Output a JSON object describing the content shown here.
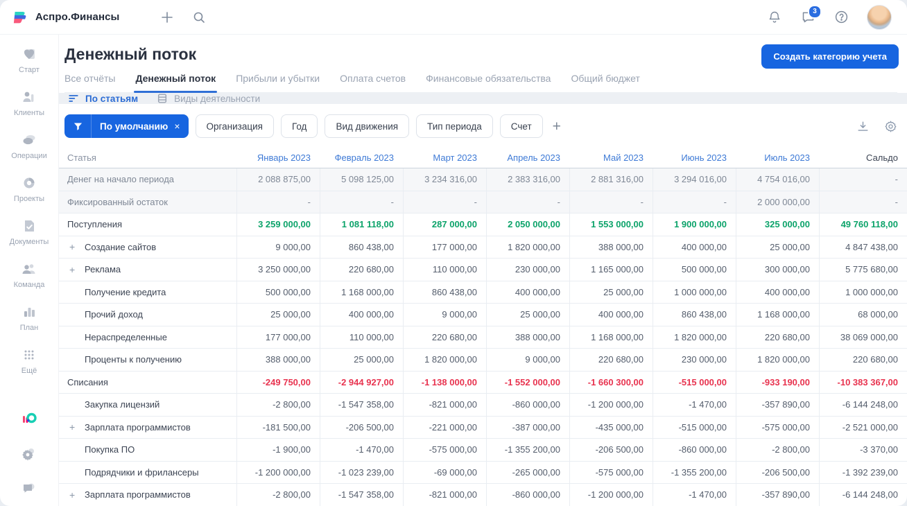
{
  "colors": {
    "accent": "#1765e0",
    "income_green": "#0ca36a",
    "expense_red": "#e8334f",
    "link_blue": "#3e7ad6"
  },
  "topbar": {
    "app_name": "Аспро.Финансы",
    "chat_badge": "3"
  },
  "sidebar": {
    "items": [
      {
        "label": "Старт",
        "icon": "start-icon"
      },
      {
        "label": "Клиенты",
        "icon": "clients-icon"
      },
      {
        "label": "Операции",
        "icon": "operations-icon"
      },
      {
        "label": "Проекты",
        "icon": "projects-icon"
      },
      {
        "label": "Документы",
        "icon": "documents-icon"
      },
      {
        "label": "Команда",
        "icon": "team-icon"
      },
      {
        "label": "План",
        "icon": "plan-icon"
      },
      {
        "label": "Ещё",
        "icon": "more-icon"
      }
    ],
    "footer_icons": [
      "aspro-logo",
      "settings-icon",
      "feedback-icon"
    ]
  },
  "page": {
    "title": "Денежный поток",
    "create_button": "Создать категорию учета"
  },
  "tabs": [
    {
      "label": "Все отчёты",
      "active": false
    },
    {
      "label": "Денежный поток",
      "active": true
    },
    {
      "label": "Прибыли и убытки",
      "active": false
    },
    {
      "label": "Оплата счетов",
      "active": false
    },
    {
      "label": "Финансовые обязательства",
      "active": false
    },
    {
      "label": "Общий бюджет",
      "active": false
    }
  ],
  "subtabs": [
    {
      "label": "По статьям",
      "active": true,
      "icon": "sort-lines-icon"
    },
    {
      "label": "Виды деятельности",
      "active": false,
      "icon": "stack-icon"
    }
  ],
  "filters": {
    "active_chip": {
      "label": "По умолчанию",
      "close": "×"
    },
    "buttons": [
      "Организация",
      "Год",
      "Вид движения",
      "Тип периода",
      "Счет"
    ],
    "add_label": "+"
  },
  "table": {
    "columns": [
      {
        "label": "Статья",
        "type": "label"
      },
      {
        "label": "Январь 2023",
        "type": "month"
      },
      {
        "label": "Февраль 2023",
        "type": "month"
      },
      {
        "label": "Март 2023",
        "type": "month"
      },
      {
        "label": "Апрель 2023",
        "type": "month"
      },
      {
        "label": "Май 2023",
        "type": "month"
      },
      {
        "label": "Июнь 2023",
        "type": "month"
      },
      {
        "label": "Июль 2023",
        "type": "month"
      },
      {
        "label": "Сальдо",
        "type": "saldo"
      }
    ],
    "rows": [
      {
        "label": "Денег на начало периода",
        "style": "muted",
        "values": [
          "2 088 875,00",
          "5 098 125,00",
          "3 234 316,00",
          "2 383 316,00",
          "2 881 316,00",
          "3 294 016,00",
          "4 754 016,00",
          "-"
        ]
      },
      {
        "label": "Фиксированный остаток",
        "style": "muted",
        "values": [
          "-",
          "-",
          "-",
          "-",
          "-",
          "-",
          "2 000 000,00",
          "-"
        ]
      },
      {
        "label": "Поступления",
        "style": "income",
        "values": [
          "3 259 000,00",
          "1 081 118,00",
          "287 000,00",
          "2 050 000,00",
          "1 553 000,00",
          "1 900 000,00",
          "325 000,00",
          "49 760 118,00"
        ]
      },
      {
        "label": "Создание сайтов",
        "style": "child",
        "indent": true,
        "expandable": true,
        "values": [
          "9 000,00",
          "860 438,00",
          "177 000,00",
          "1 820 000,00",
          "388 000,00",
          "400 000,00",
          "25 000,00",
          "4 847 438,00"
        ]
      },
      {
        "label": "Реклама",
        "style": "child",
        "indent": true,
        "expandable": true,
        "values": [
          "3 250 000,00",
          "220 680,00",
          "110 000,00",
          "230 000,00",
          "1 165 000,00",
          "500 000,00",
          "300 000,00",
          "5 775 680,00"
        ]
      },
      {
        "label": "Получение кредита",
        "style": "child",
        "indent": true,
        "values": [
          "500 000,00",
          "1 168 000,00",
          "860 438,00",
          "400 000,00",
          "25 000,00",
          "1 000 000,00",
          "400 000,00",
          "1 000 000,00"
        ]
      },
      {
        "label": "Прочий доход",
        "style": "child",
        "indent": true,
        "values": [
          "25 000,00",
          "400 000,00",
          "9 000,00",
          "25 000,00",
          "400 000,00",
          "860 438,00",
          "1 168 000,00",
          "68 000,00"
        ]
      },
      {
        "label": "Нераспределенные",
        "style": "child",
        "indent": true,
        "values": [
          "177 000,00",
          "110 000,00",
          "220 680,00",
          "388 000,00",
          "1 168 000,00",
          "1 820 000,00",
          "220 680,00",
          "38 069 000,00"
        ]
      },
      {
        "label": "Проценты к получению",
        "style": "child",
        "indent": true,
        "values": [
          "388 000,00",
          "25 000,00",
          "1 820 000,00",
          "9 000,00",
          "220 680,00",
          "230 000,00",
          "1 820 000,00",
          "220 680,00"
        ]
      },
      {
        "label": "Списания",
        "style": "expense",
        "values": [
          "-249 750,00",
          "-2 944 927,00",
          "-1 138 000,00",
          "-1 552 000,00",
          "-1 660 300,00",
          "-515 000,00",
          "-933 190,00",
          "-10 383 367,00"
        ]
      },
      {
        "label": "Закупка лицензий",
        "style": "child",
        "indent": true,
        "values": [
          "-2 800,00",
          "-1 547 358,00",
          "-821 000,00",
          "-860 000,00",
          "-1 200 000,00",
          "-1 470,00",
          "-357 890,00",
          "-6 144 248,00"
        ]
      },
      {
        "label": "Зарплата программистов",
        "style": "child",
        "indent": true,
        "expandable": true,
        "values": [
          "-181 500,00",
          "-206 500,00",
          "-221 000,00",
          "-387 000,00",
          "-435 000,00",
          "-515 000,00",
          "-575 000,00",
          "-2 521 000,00"
        ]
      },
      {
        "label": "Покупка ПО",
        "style": "child",
        "indent": true,
        "values": [
          "-1 900,00",
          "-1 470,00",
          "-575 000,00",
          "-1 355 200,00",
          "-206 500,00",
          "-860 000,00",
          "-2 800,00",
          "-3 370,00"
        ]
      },
      {
        "label": "Подрядчики и фрилансеры",
        "style": "child",
        "indent": true,
        "values": [
          "-1 200 000,00",
          "-1 023 239,00",
          "-69 000,00",
          "-265 000,00",
          "-575 000,00",
          "-1 355 200,00",
          "-206 500,00",
          "-1 392 239,00"
        ]
      },
      {
        "label": "Зарплата программистов",
        "style": "child",
        "indent": true,
        "expandable": true,
        "values": [
          "-2 800,00",
          "-1 547 358,00",
          "-821 000,00",
          "-860 000,00",
          "-1 200 000,00",
          "-1 470,00",
          "-357 890,00",
          "-6 144 248,00"
        ]
      }
    ]
  }
}
